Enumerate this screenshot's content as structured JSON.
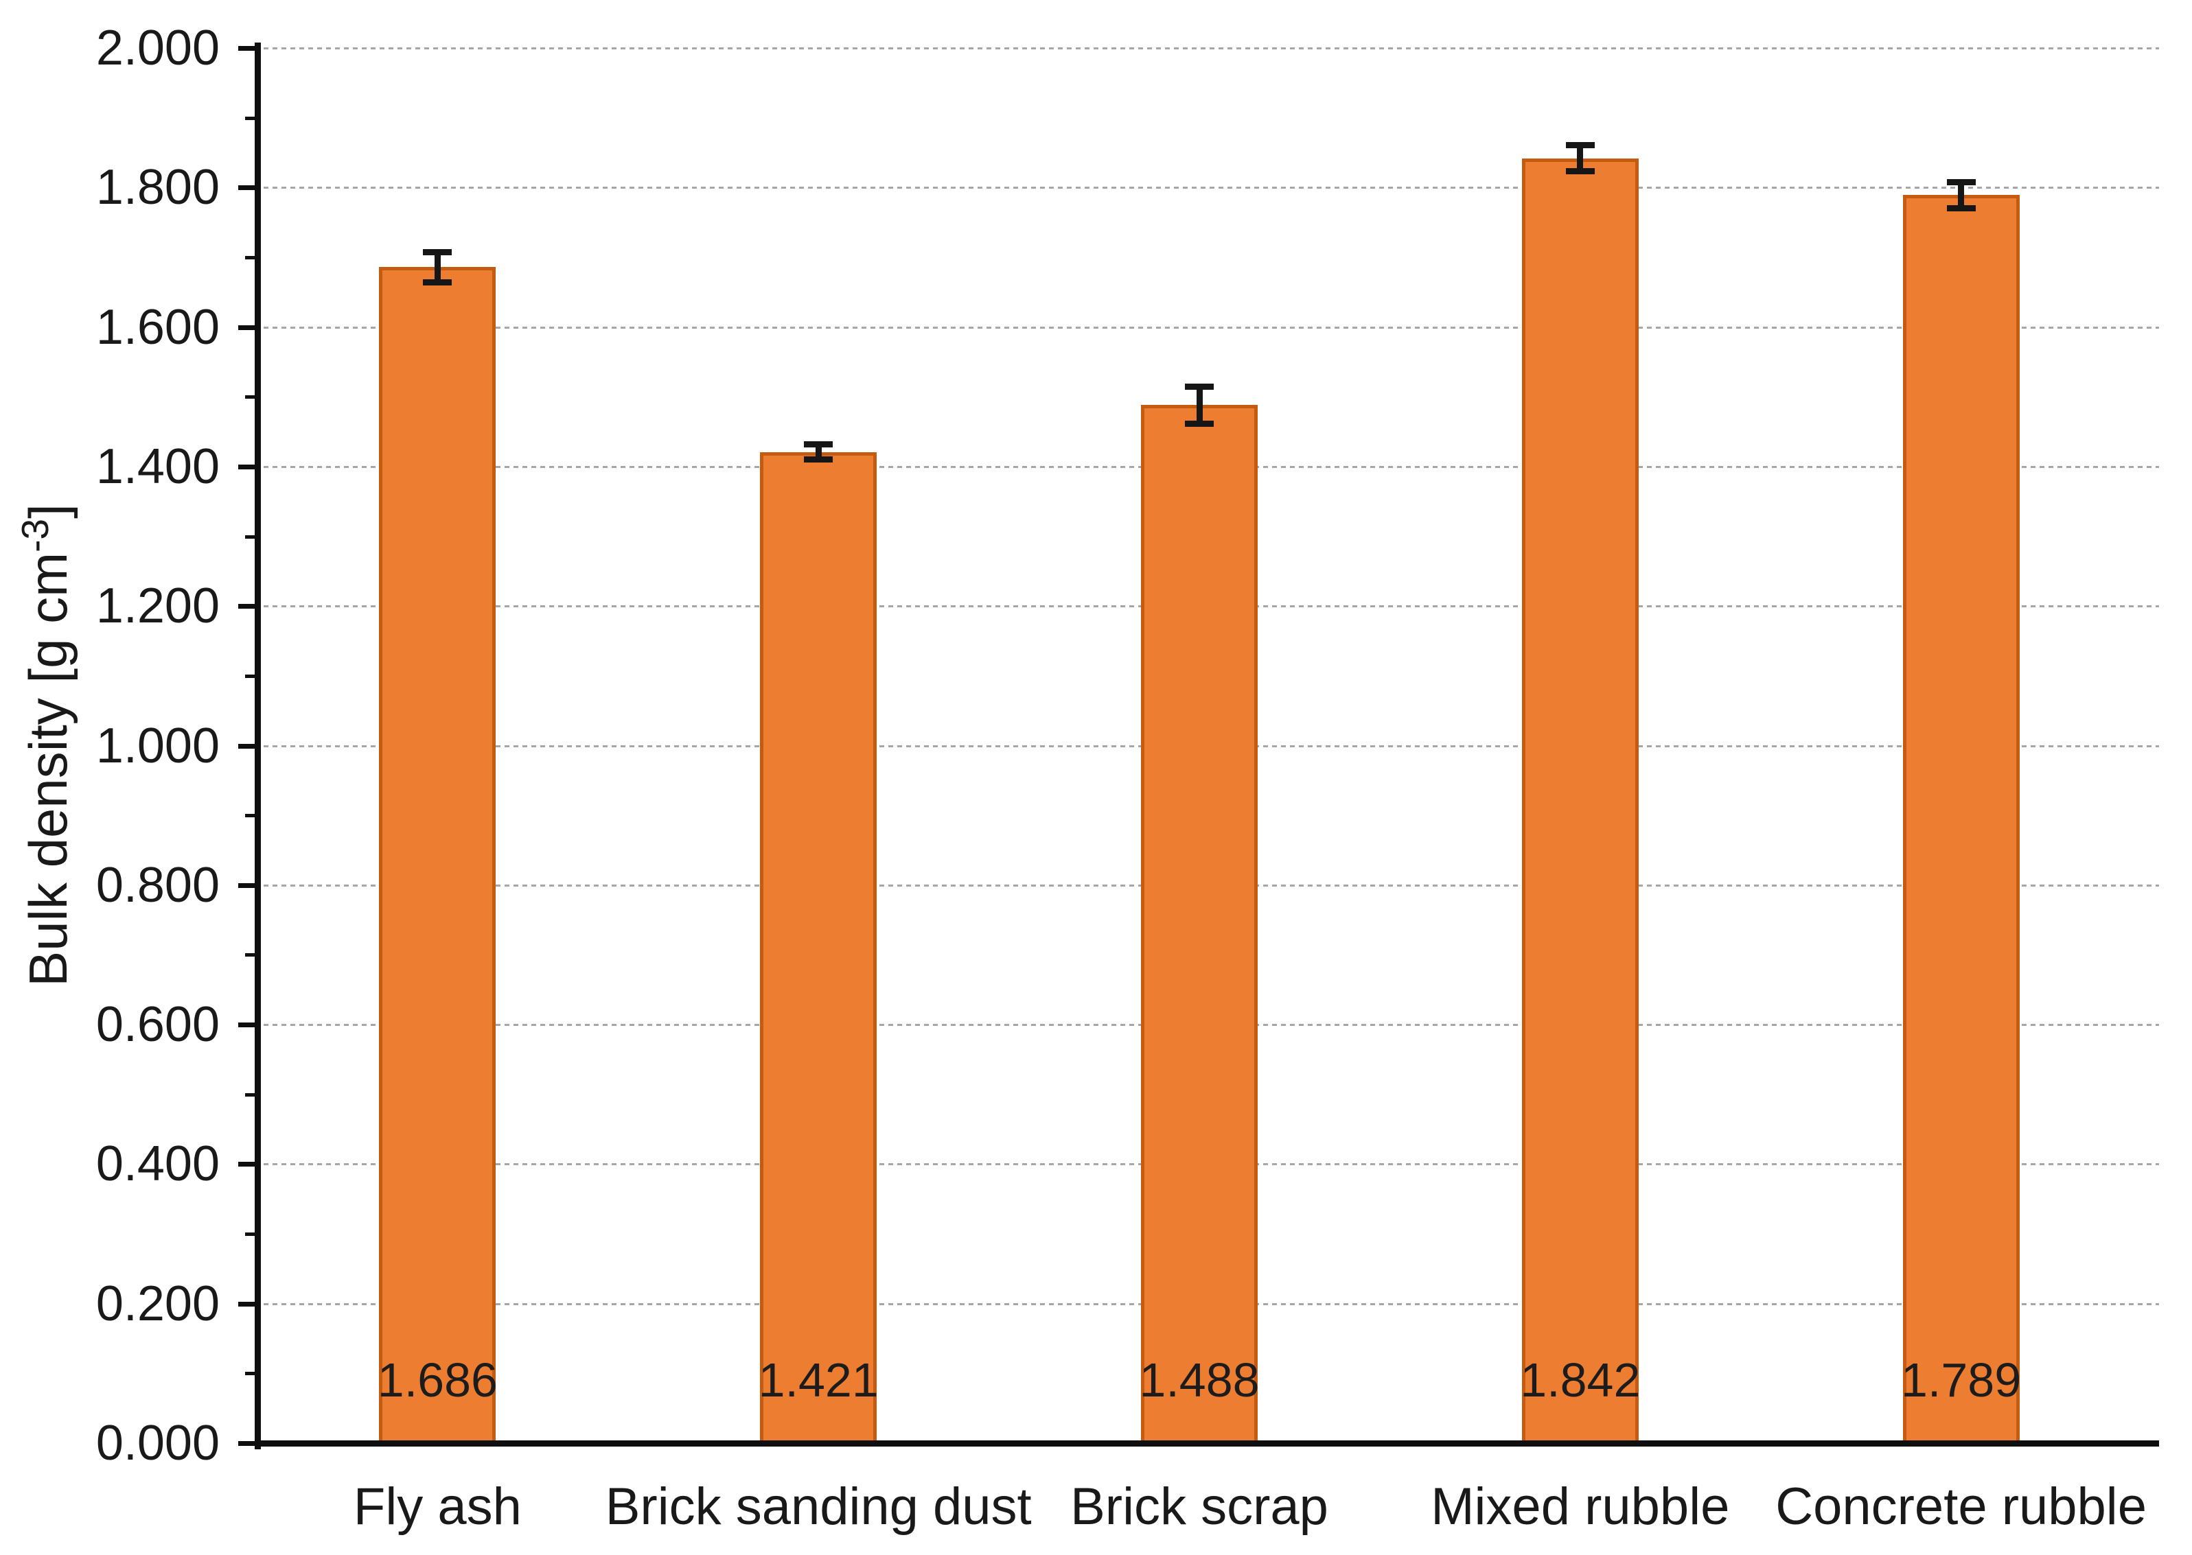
{
  "chart_data": {
    "type": "bar",
    "categories": [
      "Fly ash",
      "Brick sanding dust",
      "Brick scrap",
      "Mixed rubble",
      "Concrete rubble"
    ],
    "values": [
      1.686,
      1.421,
      1.488,
      1.842,
      1.789
    ],
    "bar_labels": [
      "1.686",
      "1.421",
      "1.488",
      "1.842",
      "1.789"
    ],
    "error_bars_plus_minus": [
      0.022,
      0.011,
      0.027,
      0.019,
      0.019
    ],
    "ylabel_prefix": "Bulk density [g cm",
    "ylabel_sup": "-3",
    "ylabel_suffix": "]",
    "ylabel_full": "Bulk density [g cm-3]",
    "xlabel": "",
    "ylim": [
      0,
      2.0
    ],
    "ytick_step": 0.2,
    "ytick_minor_step": 0.1,
    "ytick_labels": [
      "0.000",
      "0.200",
      "0.400",
      "0.600",
      "0.800",
      "1.000",
      "1.200",
      "1.400",
      "1.600",
      "1.800",
      "2.000"
    ],
    "grid": true,
    "gridline_style": "dashed",
    "legend": "none",
    "title": ""
  },
  "colors": {
    "bar_fill": "#ED7D31",
    "bar_border": "#C55A11",
    "gridline": "#A6A6A6",
    "axis": "#0f0f0f",
    "text": "#191919",
    "error_bar": "#161616",
    "background": "#FFFFFF"
  }
}
